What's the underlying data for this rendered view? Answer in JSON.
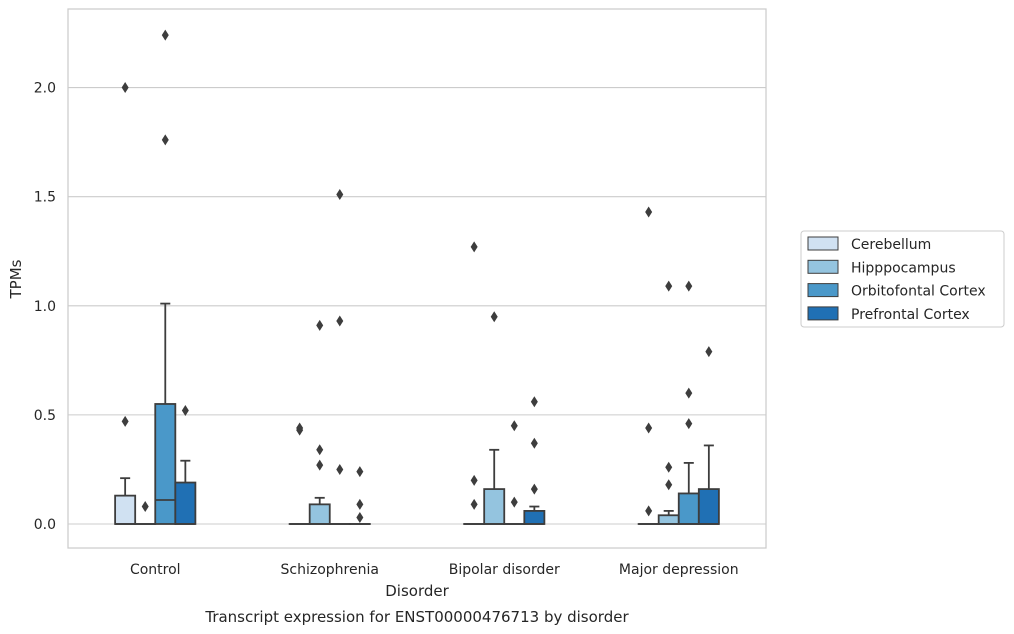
{
  "chart_data": {
    "type": "box",
    "title": "Transcript expression for ENST00000476713 by disorder",
    "xlabel": "Disorder",
    "ylabel": "TPMs",
    "categories": [
      "Control",
      "Schizophrenia",
      "Bipolar disorder",
      "Major depression"
    ],
    "ylim": [
      -0.11,
      2.36
    ],
    "yticks": [
      0.0,
      0.5,
      1.0,
      1.5,
      2.0
    ],
    "ytick_labels": [
      "0.0",
      "0.5",
      "1.0",
      "1.5",
      "2.0"
    ],
    "grid": "horizontal",
    "legend_position": "right",
    "series": [
      {
        "name": "Cerebellum",
        "color": "#d0e1f2",
        "boxes": [
          {
            "q1": 0.0,
            "median": 0.0,
            "q3": 0.13,
            "whisker_low": 0.0,
            "whisker_high": 0.21,
            "outliers": [
              0.47,
              2.0
            ]
          },
          {
            "q1": 0.0,
            "median": 0.0,
            "q3": 0.0,
            "whisker_low": 0.0,
            "whisker_high": 0.0,
            "outliers": [
              0.43,
              0.44
            ]
          },
          {
            "q1": 0.0,
            "median": 0.0,
            "q3": 0.0,
            "whisker_low": 0.0,
            "whisker_high": 0.0,
            "outliers": [
              0.09,
              0.2,
              1.27
            ]
          },
          {
            "q1": 0.0,
            "median": 0.0,
            "q3": 0.0,
            "whisker_low": 0.0,
            "whisker_high": 0.0,
            "outliers": [
              0.06,
              0.44,
              1.43
            ]
          }
        ]
      },
      {
        "name": "Hipppocampus",
        "color": "#94c4df",
        "boxes": [
          {
            "q1": 0.0,
            "median": 0.0,
            "q3": 0.0,
            "whisker_low": 0.0,
            "whisker_high": 0.0,
            "outliers": [
              0.08
            ]
          },
          {
            "q1": 0.0,
            "median": 0.0,
            "q3": 0.09,
            "whisker_low": 0.0,
            "whisker_high": 0.12,
            "outliers": [
              0.27,
              0.34,
              0.91
            ]
          },
          {
            "q1": 0.0,
            "median": 0.0,
            "q3": 0.16,
            "whisker_low": 0.0,
            "whisker_high": 0.34,
            "outliers": [
              0.95
            ]
          },
          {
            "q1": 0.0,
            "median": 0.0,
            "q3": 0.04,
            "whisker_low": 0.0,
            "whisker_high": 0.06,
            "outliers": [
              0.18,
              0.26,
              1.09
            ]
          }
        ]
      },
      {
        "name": "Orbitofontal Cortex",
        "color": "#4a98c9",
        "boxes": [
          {
            "q1": 0.0,
            "median": 0.11,
            "q3": 0.55,
            "whisker_low": 0.0,
            "whisker_high": 1.01,
            "outliers": [
              1.76,
              2.24
            ]
          },
          {
            "q1": 0.0,
            "median": 0.0,
            "q3": 0.0,
            "whisker_low": 0.0,
            "whisker_high": 0.0,
            "outliers": [
              0.25,
              0.93,
              1.51
            ]
          },
          {
            "q1": 0.0,
            "median": 0.0,
            "q3": 0.0,
            "whisker_low": 0.0,
            "whisker_high": 0.0,
            "outliers": [
              0.1,
              0.45
            ]
          },
          {
            "q1": 0.0,
            "median": 0.0,
            "q3": 0.14,
            "whisker_low": 0.0,
            "whisker_high": 0.28,
            "outliers": [
              0.46,
              0.6,
              1.09
            ]
          }
        ]
      },
      {
        "name": "Prefrontal Cortex",
        "color": "#2070b4",
        "boxes": [
          {
            "q1": 0.0,
            "median": 0.0,
            "q3": 0.19,
            "whisker_low": 0.0,
            "whisker_high": 0.29,
            "outliers": [
              0.52
            ]
          },
          {
            "q1": 0.0,
            "median": 0.0,
            "q3": 0.0,
            "whisker_low": 0.0,
            "whisker_high": 0.0,
            "outliers": [
              0.03,
              0.09,
              0.24
            ]
          },
          {
            "q1": 0.0,
            "median": 0.0,
            "q3": 0.06,
            "whisker_low": 0.0,
            "whisker_high": 0.08,
            "outliers": [
              0.16,
              0.37,
              0.56
            ]
          },
          {
            "q1": 0.0,
            "median": 0.0,
            "q3": 0.16,
            "whisker_low": 0.0,
            "whisker_high": 0.36,
            "outliers": [
              0.79
            ]
          }
        ]
      }
    ]
  }
}
